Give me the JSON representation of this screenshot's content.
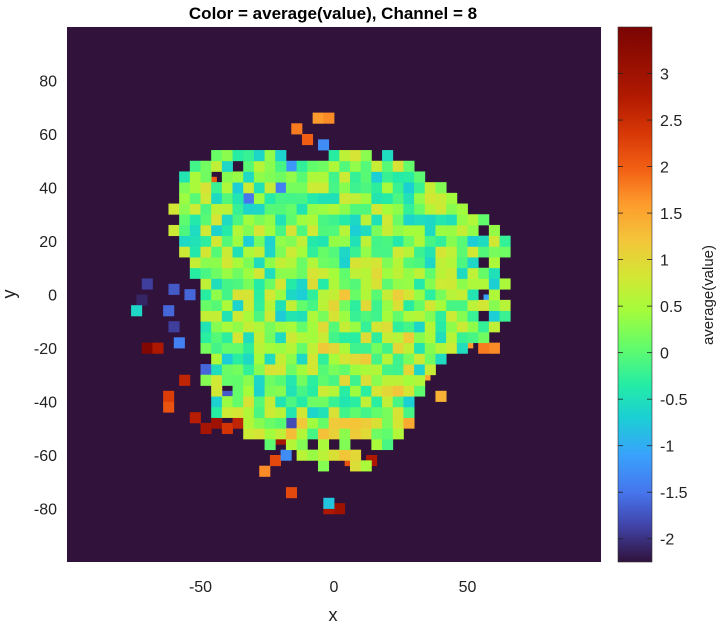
{
  "chart_data": {
    "type": "heatmap",
    "title": "Color = average(value),  Channel = 8",
    "xlabel": "x",
    "ylabel": "y",
    "xlim": [
      -100,
      100
    ],
    "ylim": [
      -100,
      100
    ],
    "xticks": [
      -50,
      0,
      50
    ],
    "xtick_labels": [
      "-50",
      "0",
      "50"
    ],
    "yticks": [
      80,
      60,
      40,
      20,
      0,
      -20,
      -40,
      -60,
      -80
    ],
    "ytick_labels": [
      "80",
      "60",
      "40",
      "20",
      "0",
      "-20",
      "-40",
      "-60",
      "-80"
    ],
    "colorbar": {
      "label": "average(value)",
      "colormap": "turbo",
      "range": [
        -2.25,
        3.5
      ],
      "ticks": [
        3,
        2.5,
        2,
        1.5,
        1,
        0.5,
        0,
        -0.5,
        -1,
        -1.5,
        -2
      ],
      "tick_labels": [
        "3",
        "2.5",
        "2",
        "1.5",
        "1",
        "0.5",
        "0",
        "-0.5",
        "-1",
        "-1.5",
        "-2"
      ]
    },
    "background_color": "#30123b",
    "bin_size": 4,
    "grid": false,
    "cells": [
      [
        -70,
        -20,
        3.4
      ],
      [
        -66,
        -20,
        2.8
      ],
      [
        -62,
        -42,
        2.1
      ],
      [
        -62,
        -38,
        2.3
      ],
      [
        -56,
        -32,
        2.6
      ],
      [
        -52,
        -46,
        2.7
      ],
      [
        -48,
        -50,
        2.9
      ],
      [
        -44,
        -48,
        3.0
      ],
      [
        -40,
        -50,
        2.4
      ],
      [
        -36,
        -48,
        2.6
      ],
      [
        -24,
        -54,
        3.3
      ],
      [
        -20,
        -54,
        2.9
      ],
      [
        -22,
        -62,
        2.2
      ],
      [
        -14,
        -42,
        2.5
      ],
      [
        -10,
        -46,
        2.7
      ],
      [
        -6,
        -42,
        2.4
      ],
      [
        -2,
        -50,
        2.2
      ],
      [
        2,
        -46,
        2.9
      ],
      [
        6,
        -42,
        2.6
      ],
      [
        10,
        -50,
        2.3
      ],
      [
        14,
        -62,
        2.8
      ],
      [
        6,
        -62,
        2.1
      ],
      [
        -16,
        -74,
        2.2
      ],
      [
        -26,
        -66,
        1.7
      ],
      [
        -2,
        -80,
        2.8
      ],
      [
        2,
        -80,
        3.0
      ],
      [
        -48,
        46,
        1.9
      ],
      [
        -46,
        42,
        2.0
      ],
      [
        -48,
        38,
        2.9
      ],
      [
        -14,
        62,
        1.8
      ],
      [
        -6,
        66,
        1.6
      ],
      [
        -2,
        66,
        1.7
      ],
      [
        -10,
        58,
        2.0
      ],
      [
        60,
        -20,
        1.7
      ],
      [
        56,
        -20,
        1.8
      ],
      [
        50,
        -18,
        1.6
      ],
      [
        34,
        -30,
        1.5
      ],
      [
        40,
        -38,
        1.4
      ],
      [
        -4,
        56,
        -1.3
      ],
      [
        -32,
        36,
        -1.5
      ],
      [
        -28,
        30,
        -1.8
      ],
      [
        -50,
        34,
        -1.2
      ],
      [
        -62,
        -6,
        -1.6
      ],
      [
        -60,
        -12,
        -1.9
      ],
      [
        -58,
        -18,
        -1.4
      ],
      [
        -48,
        -28,
        -1.6
      ],
      [
        -44,
        -34,
        -1.9
      ],
      [
        -40,
        -38,
        -1.7
      ],
      [
        -28,
        -42,
        -2.0
      ],
      [
        -22,
        -36,
        -1.5
      ],
      [
        -16,
        -48,
        -1.8
      ],
      [
        -18,
        -60,
        -1.3
      ],
      [
        -72,
        -2,
        -2.1
      ],
      [
        -70,
        4,
        -1.9
      ],
      [
        -60,
        2,
        -1.7
      ],
      [
        -54,
        0,
        -1.6
      ],
      [
        -26,
        46,
        -1.1
      ],
      [
        -20,
        40,
        -1.4
      ],
      [
        -16,
        48,
        -1.2
      ],
      [
        62,
        4,
        -1.5
      ],
      [
        58,
        -2,
        -1.1
      ],
      [
        52,
        10,
        -1.3
      ],
      [
        -2,
        -78,
        -0.8
      ],
      [
        -74,
        -6,
        -0.6
      ]
    ]
  }
}
